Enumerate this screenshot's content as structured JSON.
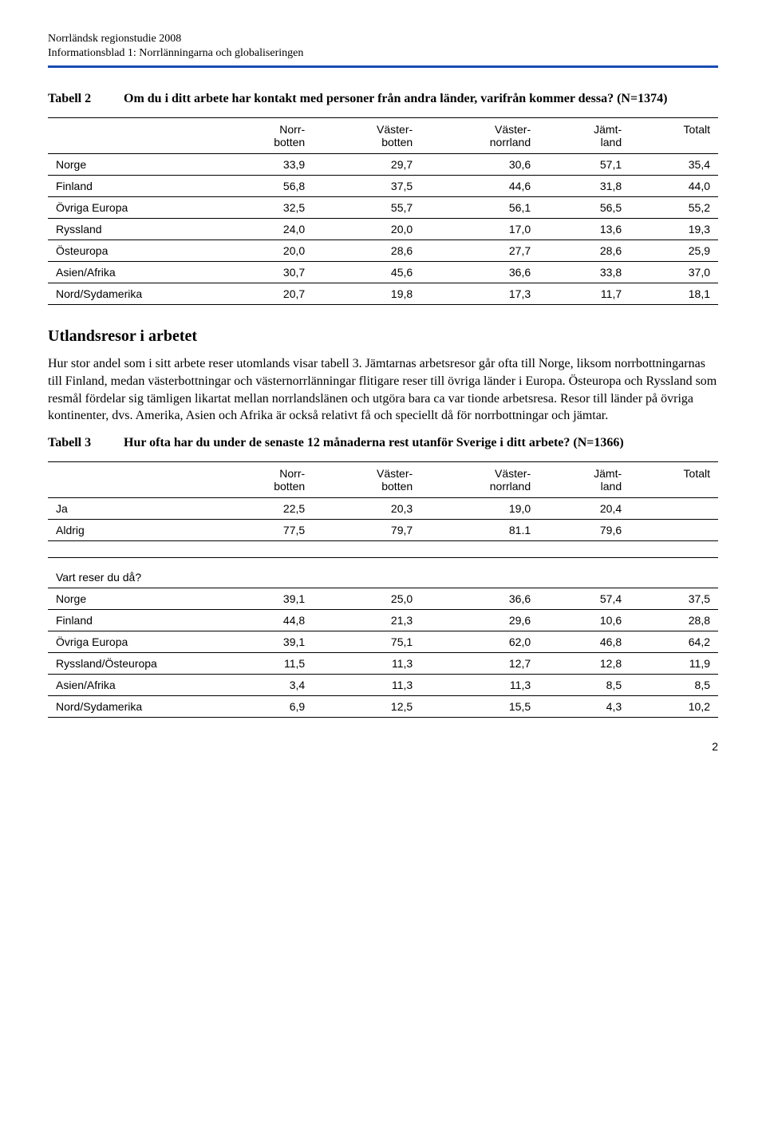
{
  "header": {
    "line1": "Norrländsk regionstudie 2008",
    "line2": "Informationsblad 1: Norrlänningarna och globaliseringen"
  },
  "tabell2": {
    "label": "Tabell 2",
    "question": "Om du i ditt arbete har kontakt med personer från andra länder, varifrån kommer dessa? (N=1374)",
    "columns": [
      "",
      "Norr-\nbotten",
      "Väster-\nbotten",
      "Väster-\nnorrland",
      "Jämt-\nland",
      "Totalt"
    ],
    "rows": [
      {
        "label": "Norge",
        "vals": [
          "33,9",
          "29,7",
          "30,6",
          "57,1",
          "35,4"
        ]
      },
      {
        "label": "Finland",
        "vals": [
          "56,8",
          "37,5",
          "44,6",
          "31,8",
          "44,0"
        ]
      },
      {
        "label": "Övriga Europa",
        "vals": [
          "32,5",
          "55,7",
          "56,1",
          "56,5",
          "55,2"
        ]
      },
      {
        "label": "Ryssland",
        "vals": [
          "24,0",
          "20,0",
          "17,0",
          "13,6",
          "19,3"
        ]
      },
      {
        "label": "Östeuropa",
        "vals": [
          "20,0",
          "28,6",
          "27,7",
          "28,6",
          "25,9"
        ]
      },
      {
        "label": "Asien/Afrika",
        "vals": [
          "30,7",
          "45,6",
          "36,6",
          "33,8",
          "37,0"
        ]
      },
      {
        "label": "Nord/Sydamerika",
        "vals": [
          "20,7",
          "19,8",
          "17,3",
          "11,7",
          "18,1"
        ]
      }
    ]
  },
  "section": {
    "title": "Utlandsresor i arbetet",
    "para": "Hur stor andel som i sitt arbete reser utomlands visar tabell 3. Jämtarnas arbetsresor går ofta till Norge, liksom norrbottningarnas till Finland, medan västerbottningar och västernorrlänningar flitigare reser till övriga länder i Europa. Östeuropa och Ryssland som resmål fördelar sig tämligen likartat mellan norrlandslänen och utgöra bara ca var tionde arbetsresa. Resor till länder på övriga kontinenter, dvs. Amerika, Asien och Afrika är också relativt få och speciellt då för norrbottningar och jämtar."
  },
  "tabell3": {
    "label": "Tabell 3",
    "question": "Hur ofta har du under de senaste 12 månaderna rest utanför Sverige i ditt arbete? (N=1366)",
    "columns": [
      "",
      "Norr-\nbotten",
      "Väster-\nbotten",
      "Väster-\nnorrland",
      "Jämt-\nland",
      "Totalt"
    ],
    "rows_top": [
      {
        "label": "Ja",
        "vals": [
          "22,5",
          "20,3",
          "19,0",
          "20,4",
          ""
        ]
      },
      {
        "label": "Aldrig",
        "vals": [
          "77,5",
          "79,7",
          "81.1",
          "79,6",
          ""
        ]
      }
    ],
    "subheading": "Vart reser du då?",
    "rows_bottom": [
      {
        "label": "Norge",
        "vals": [
          "39,1",
          "25,0",
          "36,6",
          "57,4",
          "37,5"
        ]
      },
      {
        "label": "Finland",
        "vals": [
          "44,8",
          "21,3",
          "29,6",
          "10,6",
          "28,8"
        ]
      },
      {
        "label": "Övriga Europa",
        "vals": [
          "39,1",
          "75,1",
          "62,0",
          "46,8",
          "64,2"
        ]
      },
      {
        "label": "Ryssland/Östeuropa",
        "vals": [
          "11,5",
          "11,3",
          "12,7",
          "12,8",
          "11,9"
        ]
      },
      {
        "label": "Asien/Afrika",
        "vals": [
          "3,4",
          "11,3",
          "11,3",
          "8,5",
          "8,5"
        ]
      },
      {
        "label": "Nord/Sydamerika",
        "vals": [
          "6,9",
          "12,5",
          "15,5",
          "4,3",
          "10,2"
        ]
      }
    ]
  },
  "page_number": "2"
}
